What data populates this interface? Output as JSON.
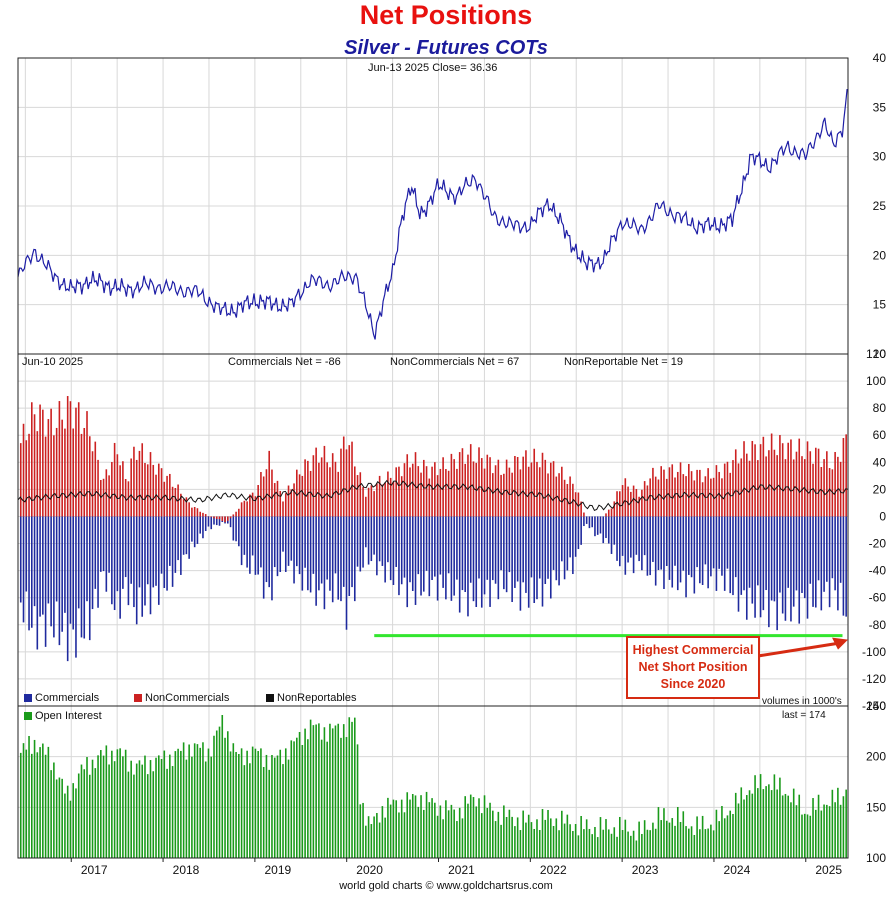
{
  "header": {
    "title": "Net Positions",
    "subtitle": "Silver - Futures COTs"
  },
  "colors": {
    "title": "#e8110f",
    "subtitle": "#1b1b9c",
    "price_line": "#1e1ea6",
    "commercials": "#1f2a9e",
    "noncommercials": "#cc2121",
    "nonreportables": "#111111",
    "open_interest": "#1a9a1a",
    "annotation_line": "#33e62e",
    "callout": "#d62b12"
  },
  "price_panel": {
    "info": "Jun-13  2025   Close= 36.36"
  },
  "positions_panel": {
    "date": "Jun-10  2025",
    "commercials_net": "Commercials Net = -86",
    "noncommercials_net": "NonCommercials Net = 67",
    "nonreportable_net": "NonReportable Net = 19",
    "legend": [
      "Commercials",
      "NonCommercials",
      "NonReportables"
    ],
    "volumes_note": "volumes in 1000's",
    "callout": "Highest Commercial Net Short Position Since 2020",
    "callout_lines": [
      "Highest Commercial",
      "Net Short Position",
      "Since 2020"
    ]
  },
  "oi_panel": {
    "label": "Open Interest",
    "last": "last = 174"
  },
  "footer": "world gold charts © www.goldchartsrus.com",
  "chart_data": [
    {
      "type": "line",
      "panel": "price",
      "series": [
        {
          "x": [
            2016.4,
            2016.6,
            2016.8,
            2017.0,
            2017.2,
            2017.4,
            2017.6,
            2017.8,
            2018.0,
            2018.2,
            2018.4,
            2018.6,
            2018.8,
            2019.0,
            2019.2,
            2019.4,
            2019.6,
            2019.8,
            2020.0,
            2020.1,
            2020.2,
            2020.3,
            2020.4,
            2020.5,
            2020.6,
            2020.7,
            2020.8,
            2021.0,
            2021.2,
            2021.4,
            2021.6,
            2021.8,
            2022.0,
            2022.2,
            2022.4,
            2022.6,
            2022.8,
            2023.0,
            2023.2,
            2023.4,
            2023.6,
            2023.8,
            2024.0,
            2024.2,
            2024.4,
            2024.6,
            2024.8,
            2025.0,
            2025.2,
            2025.3,
            2025.4,
            2025.45
          ],
          "values": [
            17.5,
            20.5,
            18.0,
            16.5,
            17.5,
            17.0,
            16.5,
            17.0,
            16.8,
            16.5,
            16.2,
            14.5,
            14.5,
            15.5,
            15.0,
            15.0,
            17.5,
            17.0,
            17.8,
            18.0,
            15.0,
            12.0,
            15.5,
            18.0,
            24.0,
            27.0,
            24.0,
            27.0,
            26.0,
            28.0,
            24.0,
            23.0,
            23.0,
            25.5,
            22.0,
            19.0,
            19.5,
            23.5,
            22.5,
            25.0,
            24.0,
            23.0,
            23.0,
            23.5,
            30.0,
            29.0,
            31.0,
            30.0,
            33.5,
            31.0,
            33.0,
            36.36
          ]
        }
      ],
      "ylim": [
        10,
        40
      ],
      "yticks": [
        10,
        15,
        20,
        25,
        30,
        35,
        40
      ]
    },
    {
      "type": "bar",
      "panel": "net_positions",
      "x_range": [
        2016.42,
        2025.46
      ],
      "ylim": [
        -140,
        120
      ],
      "yticks": [
        -140,
        -120,
        -100,
        -80,
        -60,
        -40,
        -20,
        0,
        20,
        40,
        60,
        80,
        100,
        120
      ],
      "series": [
        {
          "name": "Commercials",
          "x": [
            2016.4,
            2016.6,
            2016.8,
            2017.0,
            2017.2,
            2017.35,
            2017.5,
            2017.6,
            2017.7,
            2017.9,
            2018.1,
            2018.3,
            2018.5,
            2018.7,
            2018.8,
            2018.9,
            2019.0,
            2019.15,
            2019.3,
            2019.5,
            2019.7,
            2019.9,
            2020.0,
            2020.2,
            2020.35,
            2020.5,
            2020.7,
            2020.9,
            2021.1,
            2021.3,
            2021.5,
            2021.7,
            2021.9,
            2022.1,
            2022.3,
            2022.5,
            2022.6,
            2022.7,
            2022.8,
            2022.9,
            2023.0,
            2023.2,
            2023.3,
            2023.5,
            2023.7,
            2023.9,
            2024.1,
            2024.3,
            2024.5,
            2024.7,
            2024.9,
            2025.1,
            2025.3,
            2025.45
          ],
          "values": [
            -70,
            -100,
            -95,
            -110,
            -95,
            -50,
            -85,
            -60,
            -85,
            -70,
            -55,
            -30,
            -10,
            -5,
            -25,
            -45,
            -45,
            -70,
            -40,
            -55,
            -70,
            -65,
            -85,
            -35,
            -45,
            -55,
            -70,
            -60,
            -65,
            -75,
            -70,
            -60,
            -70,
            -70,
            -55,
            -40,
            -5,
            -15,
            -20,
            -30,
            -45,
            -40,
            -50,
            -55,
            -60,
            -55,
            -55,
            -75,
            -80,
            -85,
            -80,
            -75,
            -65,
            -86
          ]
        },
        {
          "name": "NonCommercials",
          "x": [
            2016.4,
            2016.6,
            2016.8,
            2017.0,
            2017.2,
            2017.35,
            2017.5,
            2017.6,
            2017.7,
            2017.9,
            2018.1,
            2018.3,
            2018.5,
            2018.7,
            2018.8,
            2018.9,
            2019.0,
            2019.15,
            2019.3,
            2019.5,
            2019.7,
            2019.9,
            2020.0,
            2020.2,
            2020.35,
            2020.5,
            2020.7,
            2020.9,
            2021.1,
            2021.3,
            2021.5,
            2021.7,
            2021.9,
            2022.1,
            2022.3,
            2022.5,
            2022.6,
            2022.7,
            2022.8,
            2022.9,
            2023.0,
            2023.2,
            2023.3,
            2023.5,
            2023.7,
            2023.9,
            2024.1,
            2024.3,
            2024.5,
            2024.7,
            2024.9,
            2025.1,
            2025.3,
            2025.45
          ],
          "values": [
            55,
            90,
            80,
            95,
            75,
            30,
            60,
            30,
            60,
            45,
            30,
            10,
            0,
            -5,
            5,
            15,
            20,
            50,
            15,
            40,
            55,
            45,
            70,
            20,
            30,
            35,
            50,
            40,
            45,
            55,
            50,
            40,
            50,
            50,
            40,
            25,
            0,
            0,
            0,
            10,
            30,
            20,
            35,
            40,
            40,
            35,
            40,
            55,
            60,
            62,
            58,
            55,
            45,
            67
          ]
        },
        {
          "name": "NonReportables",
          "x": [
            2016.4,
            2016.8,
            2017.2,
            2017.6,
            2018.0,
            2018.4,
            2018.7,
            2019.0,
            2019.4,
            2019.8,
            2020.1,
            2020.5,
            2020.9,
            2021.3,
            2021.7,
            2022.1,
            2022.5,
            2022.7,
            2022.9,
            2023.3,
            2023.7,
            2024.1,
            2024.5,
            2024.9,
            2025.2,
            2025.45
          ],
          "values": [
            12,
            15,
            17,
            14,
            14,
            12,
            16,
            13,
            18,
            15,
            22,
            25,
            22,
            22,
            18,
            16,
            10,
            6,
            8,
            14,
            16,
            15,
            22,
            20,
            18,
            19
          ]
        }
      ]
    },
    {
      "type": "bar",
      "panel": "open_interest",
      "name": "Open Interest",
      "x": [
        2016.4,
        2016.6,
        2016.8,
        2016.95,
        2017.1,
        2017.3,
        2017.5,
        2017.7,
        2017.9,
        2018.1,
        2018.3,
        2018.5,
        2018.65,
        2018.8,
        2019.0,
        2019.2,
        2019.4,
        2019.6,
        2019.8,
        2020.0,
        2020.1,
        2020.15,
        2020.25,
        2020.4,
        2020.6,
        2020.8,
        2021.0,
        2021.2,
        2021.4,
        2021.6,
        2021.8,
        2022.0,
        2022.2,
        2022.4,
        2022.6,
        2022.8,
        2023.0,
        2023.2,
        2023.4,
        2023.6,
        2023.8,
        2024.0,
        2024.2,
        2024.4,
        2024.6,
        2024.8,
        2025.0,
        2025.2,
        2025.4,
        2025.45
      ],
      "values": [
        200,
        215,
        195,
        160,
        185,
        200,
        205,
        190,
        195,
        200,
        210,
        205,
        235,
        200,
        205,
        195,
        210,
        230,
        225,
        230,
        235,
        160,
        130,
        150,
        155,
        160,
        150,
        145,
        160,
        145,
        140,
        135,
        140,
        135,
        130,
        130,
        130,
        125,
        140,
        140,
        130,
        135,
        150,
        170,
        175,
        165,
        145,
        155,
        160,
        174
      ],
      "ylim": [
        100,
        250
      ],
      "yticks": [
        100,
        150,
        200,
        250
      ],
      "xticks": [
        "2017",
        "2018",
        "2019",
        "2020",
        "2021",
        "2022",
        "2023",
        "2024",
        "2025"
      ]
    }
  ]
}
